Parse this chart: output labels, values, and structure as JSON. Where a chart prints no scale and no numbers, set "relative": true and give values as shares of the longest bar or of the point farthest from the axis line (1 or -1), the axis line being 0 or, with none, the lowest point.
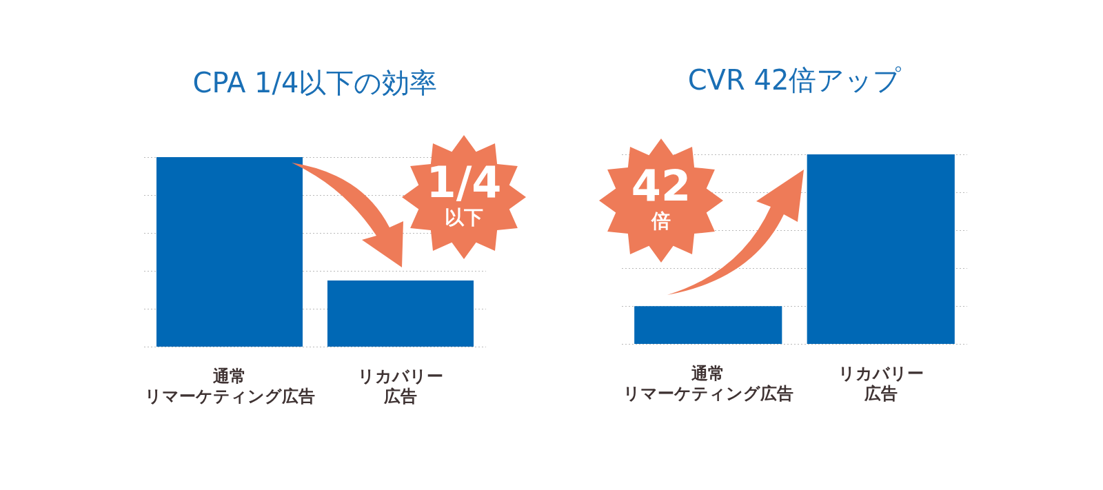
{
  "chart_data": [
    {
      "type": "bar",
      "title": "CPA 1/4以下の効率",
      "categories": [
        "通常リマーケティング広告",
        "リカバリー広告"
      ],
      "values": [
        1,
        0.35
      ],
      "color": "#0068b5",
      "relative": true,
      "grid": "y",
      "annotations": [
        "1/4\n以下"
      ]
    },
    {
      "type": "bar",
      "title": "CVR 42倍アップ",
      "categories": [
        "通常リマーケティング広告",
        "リカバリー広告"
      ],
      "values": [
        0.2,
        1
      ],
      "color": "#0068b5",
      "relative": true,
      "grid": "y",
      "annotations": [
        "42\n倍"
      ]
    }
  ]
}
